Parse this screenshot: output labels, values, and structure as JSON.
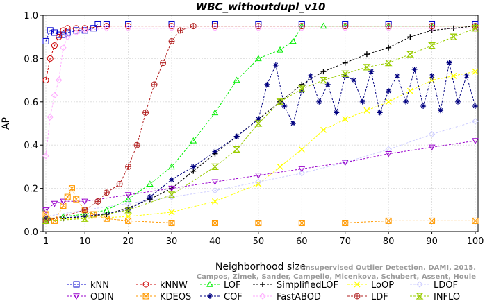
{
  "chart_data": {
    "type": "line",
    "title": "WBC_withoutdupl_v10",
    "xlabel": "Neighborhood size",
    "ylabel": "AP",
    "xlim": [
      0,
      100
    ],
    "ylim": [
      0,
      1
    ],
    "xticks": [
      1,
      10,
      20,
      30,
      40,
      50,
      60,
      70,
      80,
      90,
      100
    ],
    "yticks": [
      0.0,
      0.2,
      0.4,
      0.6,
      0.8,
      1.0
    ],
    "grid": true,
    "legend_position": "bottom",
    "watermark": [
      "...Unsupervised Outlier Detection. DAMI, 2015.",
      "Campos, Zimek, Sander, Campello, Micenkova, Schubert, Assent, Houle"
    ],
    "series": [
      {
        "name": "kNN",
        "color": "#0000cc",
        "marker": "square",
        "x": [
          1,
          2,
          3,
          4,
          5,
          6,
          8,
          10,
          12,
          13,
          15,
          20,
          30,
          40,
          50,
          60,
          70,
          80,
          90,
          100
        ],
        "y": [
          0.88,
          0.93,
          0.92,
          0.91,
          0.91,
          0.92,
          0.93,
          0.93,
          0.94,
          0.96,
          0.96,
          0.96,
          0.96,
          0.96,
          0.96,
          0.96,
          0.96,
          0.96,
          0.96,
          0.96
        ]
      },
      {
        "name": "kNNW",
        "color": "#cc0000",
        "marker": "circle",
        "x": [
          1,
          2,
          3,
          4,
          5,
          6,
          8,
          10,
          15,
          20,
          30,
          40,
          50,
          60,
          70,
          80,
          90,
          100
        ],
        "y": [
          0.7,
          0.8,
          0.86,
          0.9,
          0.93,
          0.94,
          0.94,
          0.94,
          0.95,
          0.95,
          0.95,
          0.95,
          0.95,
          0.95,
          0.95,
          0.95,
          0.95,
          0.95
        ]
      },
      {
        "name": "LOF",
        "color": "#00ee00",
        "marker": "triangle-up",
        "x": [
          1,
          5,
          10,
          15,
          20,
          25,
          30,
          35,
          40,
          45,
          50,
          55,
          58,
          60,
          65,
          70,
          80,
          90,
          100
        ],
        "y": [
          0.05,
          0.07,
          0.08,
          0.1,
          0.15,
          0.22,
          0.3,
          0.42,
          0.55,
          0.7,
          0.8,
          0.84,
          0.88,
          0.95,
          0.95,
          0.95,
          0.95,
          0.95,
          0.95
        ]
      },
      {
        "name": "SimplifiedLOF",
        "color": "#000000",
        "marker": "plus",
        "x": [
          1,
          5,
          10,
          15,
          20,
          25,
          30,
          35,
          40,
          45,
          50,
          55,
          60,
          65,
          70,
          75,
          80,
          85,
          90,
          95,
          100
        ],
        "y": [
          0.06,
          0.06,
          0.07,
          0.08,
          0.11,
          0.15,
          0.2,
          0.28,
          0.36,
          0.44,
          0.52,
          0.6,
          0.68,
          0.74,
          0.78,
          0.82,
          0.85,
          0.9,
          0.93,
          0.94,
          0.95
        ]
      },
      {
        "name": "LoOP",
        "color": "#ffff00",
        "marker": "x",
        "x": [
          1,
          10,
          20,
          30,
          40,
          50,
          55,
          60,
          65,
          70,
          75,
          80,
          85,
          90,
          95,
          100
        ],
        "y": [
          0.06,
          0.06,
          0.07,
          0.09,
          0.14,
          0.22,
          0.3,
          0.38,
          0.47,
          0.52,
          0.56,
          0.6,
          0.65,
          0.7,
          0.72,
          0.74
        ]
      },
      {
        "name": "LDOF",
        "color": "#ccccff",
        "marker": "diamond",
        "x": [
          1,
          10,
          20,
          30,
          40,
          50,
          60,
          70,
          80,
          90,
          100
        ],
        "y": [
          0.07,
          0.1,
          0.13,
          0.16,
          0.19,
          0.23,
          0.27,
          0.32,
          0.38,
          0.45,
          0.51
        ]
      },
      {
        "name": "ODIN",
        "color": "#9900cc",
        "marker": "triangle-down",
        "x": [
          1,
          3,
          5,
          10,
          20,
          30,
          40,
          50,
          60,
          70,
          80,
          90,
          100
        ],
        "y": [
          0.1,
          0.13,
          0.14,
          0.14,
          0.17,
          0.2,
          0.23,
          0.26,
          0.29,
          0.32,
          0.36,
          0.39,
          0.42
        ]
      },
      {
        "name": "KDEOS",
        "color": "#ff9900",
        "marker": "square-x",
        "x": [
          1,
          3,
          5,
          6,
          7,
          8,
          10,
          12,
          15,
          20,
          30,
          40,
          50,
          60,
          70,
          80,
          90,
          100
        ],
        "y": [
          0.08,
          0.05,
          0.12,
          0.16,
          0.2,
          0.15,
          0.1,
          0.08,
          0.06,
          0.05,
          0.04,
          0.04,
          0.04,
          0.04,
          0.04,
          0.05,
          0.05,
          0.05
        ]
      },
      {
        "name": "COF",
        "color": "#000080",
        "marker": "star",
        "x": [
          1,
          10,
          20,
          25,
          30,
          35,
          40,
          45,
          50,
          52,
          54,
          56,
          58,
          60,
          62,
          64,
          66,
          68,
          70,
          72,
          74,
          76,
          78,
          80,
          82,
          84,
          86,
          88,
          90,
          92,
          94,
          96,
          98,
          100
        ],
        "y": [
          0.06,
          0.07,
          0.1,
          0.16,
          0.24,
          0.3,
          0.37,
          0.44,
          0.52,
          0.68,
          0.77,
          0.58,
          0.5,
          0.65,
          0.72,
          0.6,
          0.68,
          0.55,
          0.72,
          0.7,
          0.6,
          0.74,
          0.55,
          0.65,
          0.72,
          0.6,
          0.75,
          0.58,
          0.72,
          0.56,
          0.78,
          0.6,
          0.72,
          0.58
        ]
      },
      {
        "name": "FastABOD",
        "color": "#ffaaff",
        "marker": "diamond",
        "x": [
          1,
          2,
          3,
          4,
          5,
          6,
          8,
          10,
          15,
          20,
          30,
          40,
          50,
          60,
          70,
          80,
          90,
          100
        ],
        "y": [
          0.35,
          0.53,
          0.63,
          0.7,
          0.85,
          0.9,
          0.92,
          0.93,
          0.94,
          0.94,
          0.94,
          0.94,
          0.94,
          0.94,
          0.94,
          0.94,
          0.94,
          0.94
        ]
      },
      {
        "name": "LDF",
        "color": "#b22222",
        "marker": "circle-plus",
        "x": [
          1,
          10,
          13,
          15,
          18,
          20,
          22,
          24,
          26,
          28,
          30,
          32,
          35,
          40,
          50,
          60,
          70,
          80,
          90,
          100
        ],
        "y": [
          0.05,
          0.1,
          0.14,
          0.18,
          0.22,
          0.3,
          0.4,
          0.55,
          0.68,
          0.78,
          0.88,
          0.93,
          0.95,
          0.95,
          0.95,
          0.95,
          0.95,
          0.95,
          0.95,
          0.95
        ]
      },
      {
        "name": "INFLO",
        "color": "#99cc00",
        "marker": "hourglass",
        "x": [
          1,
          10,
          20,
          30,
          40,
          45,
          50,
          55,
          60,
          65,
          70,
          75,
          80,
          85,
          90,
          95,
          100
        ],
        "y": [
          0.05,
          0.06,
          0.1,
          0.17,
          0.3,
          0.38,
          0.5,
          0.6,
          0.66,
          0.7,
          0.73,
          0.76,
          0.78,
          0.82,
          0.86,
          0.9,
          0.94
        ]
      }
    ]
  }
}
